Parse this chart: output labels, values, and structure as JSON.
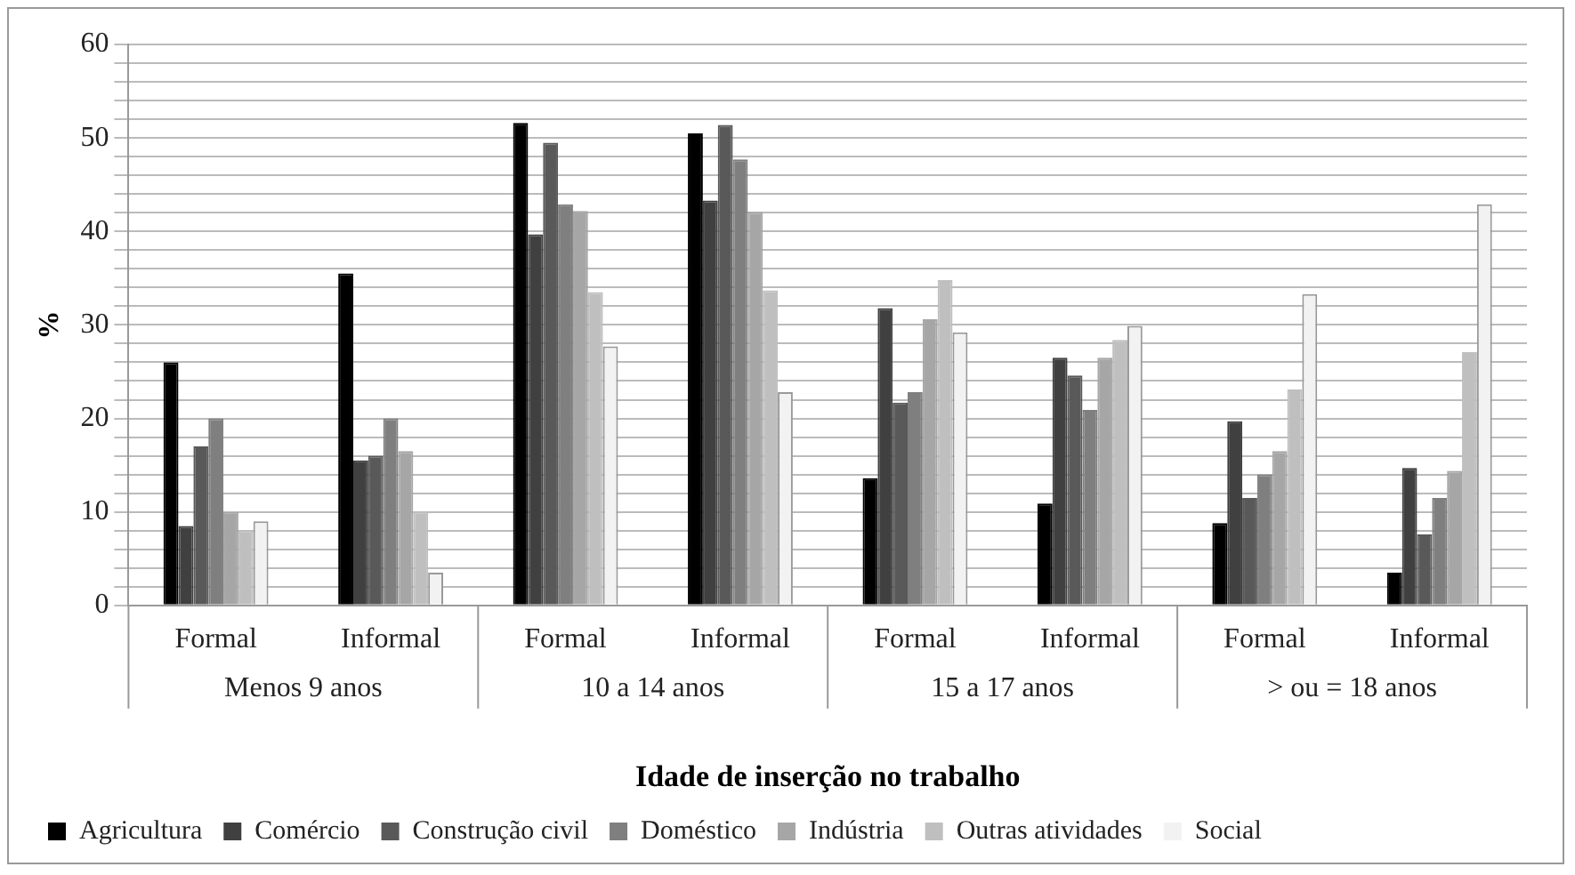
{
  "chart_data": {
    "type": "bar",
    "xlabel": "Idade de inserção no trabalho",
    "ylabel": "%",
    "categories": [
      "Formal",
      "Informal",
      "Formal",
      "Informal",
      "Formal",
      "Informal",
      "Formal",
      "Informal"
    ],
    "annotations": [
      "Menos 9 anos",
      "10 a 14 anos",
      "15 a 17 anos",
      "> ou = 18 anos"
    ],
    "series": [
      {
        "name": "Agricultura",
        "color": "#000000",
        "values": [
          26,
          35.5,
          51.6,
          50.5,
          13.6,
          10.9,
          8.8,
          3.5
        ]
      },
      {
        "name": "Comércio",
        "color": "#404040",
        "values": [
          8.5,
          15.5,
          39.7,
          43.3,
          31.8,
          26.5,
          19.7,
          14.7
        ]
      },
      {
        "name": "Construção civil",
        "color": "#595959",
        "values": [
          17,
          16,
          49.5,
          51.4,
          21.7,
          24.6,
          11.5,
          7.6
        ]
      },
      {
        "name": "Doméstico",
        "color": "#7f7f7f",
        "values": [
          20,
          20,
          42.9,
          47.7,
          22.8,
          20.9,
          14,
          11.5
        ]
      },
      {
        "name": "Indústria",
        "color": "#a6a6a6",
        "values": [
          10,
          16.5,
          42.2,
          42.1,
          30.6,
          26.5,
          16.5,
          14.4
        ]
      },
      {
        "name": "Outras atividades",
        "color": "#bfbfbf",
        "values": [
          8,
          10,
          33.5,
          33.7,
          34.8,
          28.4,
          23.1,
          27.1
        ]
      },
      {
        "name": "Social",
        "color": "#f2f2f2",
        "values": [
          9,
          3.5,
          27.7,
          22.8,
          29.2,
          29.9,
          33.3,
          42.9
        ]
      }
    ],
    "ylim": [
      0,
      60
    ],
    "yticks": [
      0,
      {
        "value": 2,
        "label": null
      },
      {
        "value": 4,
        "label": null
      },
      {
        "value": 6,
        "label": null
      },
      {
        "value": 8,
        "label": null
      },
      10,
      {
        "value": 12,
        "label": null
      },
      {
        "value": 14,
        "label": null
      },
      {
        "value": 16,
        "label": null
      },
      {
        "value": 18,
        "label": null
      },
      20,
      {
        "value": 22,
        "label": null
      },
      {
        "value": 24,
        "label": null
      },
      {
        "value": 26,
        "label": null
      },
      {
        "value": 28,
        "label": null
      },
      30,
      {
        "value": 32,
        "label": null
      },
      {
        "value": 34,
        "label": null
      },
      {
        "value": 36,
        "label": null
      },
      {
        "value": 38,
        "label": null
      },
      40,
      {
        "value": 42,
        "label": null
      },
      {
        "value": 44,
        "label": null
      },
      {
        "value": 46,
        "label": null
      },
      {
        "value": 48,
        "label": null
      },
      50,
      {
        "value": 52,
        "label": null
      },
      {
        "value": 54,
        "label": null
      },
      {
        "value": 56,
        "label": null
      },
      {
        "value": 58,
        "label": null
      },
      60
    ],
    "grid": "y",
    "legend": "bottom"
  }
}
